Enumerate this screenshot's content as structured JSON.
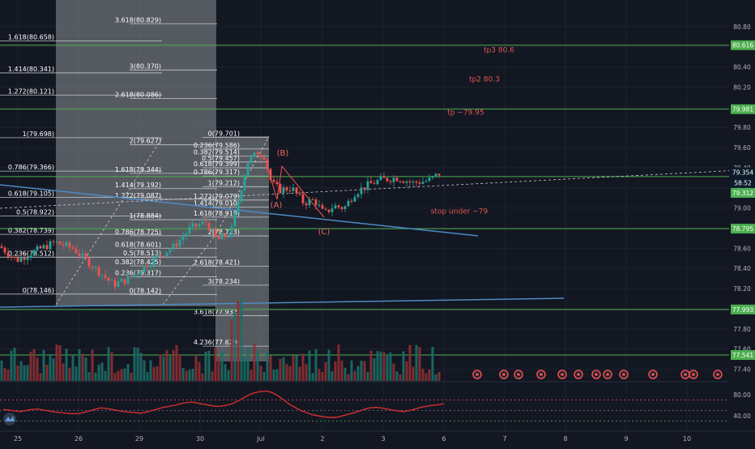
{
  "chart_data": {
    "type": "candlestick",
    "price_axis": {
      "ylim": [
        77.3,
        81.0
      ],
      "ticks": [
        "80.80",
        "80.60",
        "80.40",
        "80.20",
        "80.00",
        "79.80",
        "79.60",
        "79.40",
        "79.20",
        "79.00",
        "78.80",
        "78.60",
        "78.40",
        "78.20",
        "78.00",
        "77.80",
        "77.60",
        "77.40"
      ],
      "tick_values": [
        80.8,
        80.6,
        80.4,
        80.2,
        80.0,
        79.8,
        79.6,
        79.4,
        79.2,
        79.0,
        78.8,
        78.6,
        78.4,
        78.2,
        78.0,
        77.8,
        77.6,
        77.4
      ]
    },
    "price_badges": [
      {
        "label": "80.616",
        "value": 80.616,
        "color": "#4caf50"
      },
      {
        "label": "79.981",
        "value": 79.981,
        "color": "#4caf50"
      },
      {
        "label": "79.354",
        "value": 79.354,
        "color": "#0b1b2b"
      },
      {
        "label": "58:52",
        "value": 79.25,
        "color": "#0b1b2b"
      },
      {
        "label": "79.312",
        "value": 79.15,
        "color": "#4caf50"
      },
      {
        "label": "78.795",
        "value": 78.795,
        "color": "#4caf50"
      },
      {
        "label": "77.993",
        "value": 77.993,
        "color": "#4caf50"
      },
      {
        "label": "77.541",
        "value": 77.541,
        "color": "#4caf50"
      }
    ],
    "time_axis": {
      "labels": [
        "25",
        "26",
        "29",
        "30",
        "Jul",
        "2",
        "3",
        "6",
        "7",
        "8",
        "9",
        "10"
      ],
      "positions": [
        0,
        1,
        2,
        3,
        4,
        5,
        6,
        7,
        8,
        9,
        10,
        11
      ]
    },
    "horizontal_levels": [
      80.616,
      79.981,
      79.312,
      78.795,
      77.993,
      77.541
    ],
    "annotations": [
      {
        "text": "tp3 80.6",
        "value": 80.57
      },
      {
        "text": "tp2 80.3",
        "value": 80.28
      },
      {
        "text": "tp ~79.95",
        "value": 79.95
      },
      {
        "text": "stop under ~79",
        "value": 78.97
      }
    ],
    "wave_labels": [
      "(A)",
      "(B)",
      "(C)"
    ],
    "fib_left": [
      {
        "label": "1.618(80.658)",
        "value": 80.658
      },
      {
        "label": "1.414(80.341)",
        "value": 80.341
      },
      {
        "label": "1.272(80.121)",
        "value": 80.121
      },
      {
        "label": "1(79.698)",
        "value": 79.698
      },
      {
        "label": "0.786(79.366)",
        "value": 79.366
      },
      {
        "label": "0.618(79.105)",
        "value": 79.105
      },
      {
        "label": "0.5(78.922)",
        "value": 78.922
      },
      {
        "label": "0.382(78.739)",
        "value": 78.739
      },
      {
        "label": "0.236(78.512)",
        "value": 78.512
      },
      {
        "label": "0(78.146)",
        "value": 78.146
      }
    ],
    "fib_mid": [
      {
        "label": "3.618(80.829)",
        "value": 80.829
      },
      {
        "label": "3(80.370)",
        "value": 80.37
      },
      {
        "label": "2.618(80.086)",
        "value": 80.086
      },
      {
        "label": "2(79.627)",
        "value": 79.627
      },
      {
        "label": "1.618(79.344)",
        "value": 79.344
      },
      {
        "label": "1.414(79.192)",
        "value": 79.192
      },
      {
        "label": "1.272(79.087)",
        "value": 79.087
      },
      {
        "label": "1(78.884)",
        "value": 78.884
      },
      {
        "label": "0.786(78.725)",
        "value": 78.725
      },
      {
        "label": "0.618(78.601)",
        "value": 78.601
      },
      {
        "label": "0.5(78.513)",
        "value": 78.513
      },
      {
        "label": "0.382(78.425)",
        "value": 78.425
      },
      {
        "label": "0.236(78.317)",
        "value": 78.317
      },
      {
        "label": "0(78.142)",
        "value": 78.142
      }
    ],
    "fib_right": [
      {
        "label": "0(79.701)",
        "value": 79.701
      },
      {
        "label": "0.236(79.586)",
        "value": 79.586
      },
      {
        "label": "0.382(79.514)",
        "value": 79.514
      },
      {
        "label": "0.5(79.457)",
        "value": 79.457
      },
      {
        "label": "0.618(79.399)",
        "value": 79.399
      },
      {
        "label": "0.786(79.317)",
        "value": 79.317
      },
      {
        "label": "1(79.212)",
        "value": 79.212
      },
      {
        "label": "1.272(79.079)",
        "value": 79.079
      },
      {
        "label": "1.414(79.010)",
        "value": 79.01
      },
      {
        "label": "1.618(78.910)",
        "value": 78.91
      },
      {
        "label": "2(78.723)",
        "value": 78.723
      },
      {
        "label": "2.618(78.421)",
        "value": 78.421
      },
      {
        "label": "3(78.234)",
        "value": 78.234
      },
      {
        "label": "3.618(77.932)",
        "value": 77.932
      },
      {
        "label": "4.236(77.629)",
        "value": 77.629
      }
    ],
    "oscillator": {
      "ticks": [
        "80.00",
        "40.00"
      ],
      "tick_values": [
        80,
        40
      ],
      "ylim": [
        20,
        100
      ],
      "levels": [
        70,
        50,
        30
      ],
      "values": [
        52,
        51,
        49,
        48,
        50,
        52,
        53,
        51,
        49,
        47,
        46,
        45,
        44,
        44,
        46,
        49,
        52,
        55,
        54,
        52,
        50,
        48,
        47,
        46,
        45,
        47,
        50,
        53,
        56,
        58,
        60,
        63,
        65,
        66,
        64,
        62,
        60,
        58,
        58,
        60,
        63,
        68,
        74,
        80,
        84,
        86,
        87,
        84,
        78,
        70,
        62,
        56,
        50,
        46,
        42,
        40,
        38,
        37,
        37,
        39,
        42,
        45,
        48,
        52,
        55,
        56,
        55,
        53,
        51,
        49,
        48,
        50,
        53,
        56,
        58,
        60,
        61,
        63
      ]
    },
    "grid": true
  }
}
